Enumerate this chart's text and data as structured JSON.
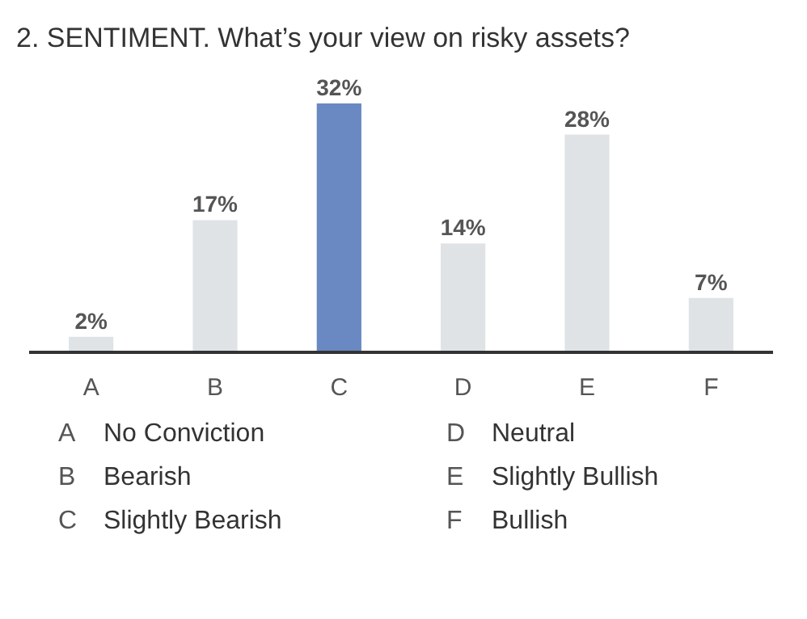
{
  "chart_data": {
    "type": "bar",
    "title": "2. SENTIMENT. What’s your view on risky assets?",
    "categories": [
      "A",
      "B",
      "C",
      "D",
      "E",
      "F"
    ],
    "values": [
      2,
      17,
      32,
      14,
      28,
      7
    ],
    "colors": [
      "#dfe3e6",
      "#dfe3e6",
      "#6a89c3",
      "#dfe3e6",
      "#dfe3e6",
      "#dfe3e6"
    ],
    "value_labels": [
      "2%",
      "17%",
      "32%",
      "14%",
      "28%",
      "7%"
    ],
    "grid": false,
    "legend": false,
    "annotations": [
      "A No Conviction",
      "B Bearish",
      "C Slightly Bearish",
      "D Neutral",
      "E Slightly Bullish",
      "F Bullish"
    ]
  }
}
